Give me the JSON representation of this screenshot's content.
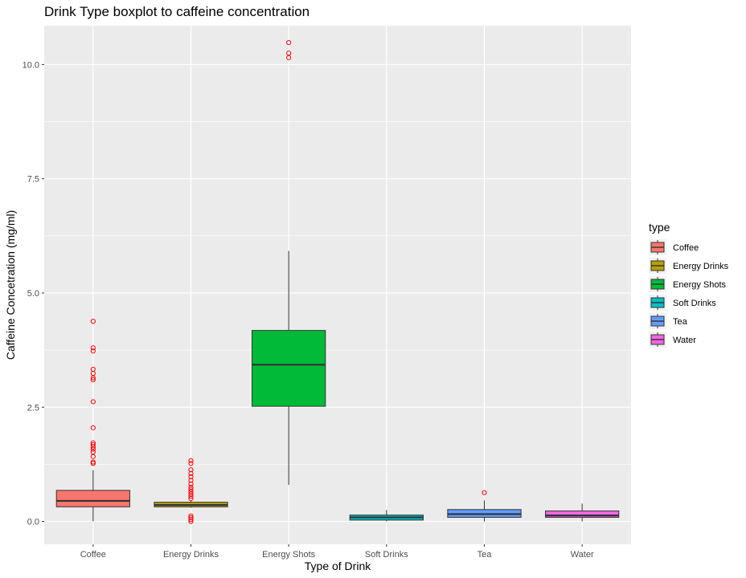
{
  "chart_data": {
    "type": "boxplot",
    "title": "Drink Type boxplot to caffeine concentration",
    "xlabel": "Type of Drink",
    "ylabel": "Caffeine Concetration (mg/ml)",
    "ylim": [
      -0.5,
      10.85
    ],
    "y_ticks": [
      0.0,
      2.5,
      5.0,
      7.5,
      10.0
    ],
    "y_tick_labels": [
      "0.0",
      "2.5",
      "5.0",
      "7.5",
      "10.0"
    ],
    "grid": true,
    "legend": {
      "title": "type",
      "placement": "right"
    },
    "outlier_color": "#ff0000",
    "categories": [
      "Coffee",
      "Energy Drinks",
      "Energy Shots",
      "Soft Drinks",
      "Tea",
      "Water"
    ],
    "series": [
      {
        "name": "Coffee",
        "color": "#f8766d",
        "whisker_low": 0.0,
        "q1": 0.32,
        "median": 0.45,
        "q3": 0.68,
        "whisker_high": 1.12,
        "outliers": [
          1.27,
          1.3,
          1.42,
          1.52,
          1.58,
          1.63,
          1.68,
          1.72,
          2.05,
          2.62,
          3.1,
          3.14,
          3.24,
          3.33,
          3.73,
          3.8,
          4.38
        ]
      },
      {
        "name": "Energy Drinks",
        "color": "#b79f00",
        "whisker_low": 0.3,
        "q1": 0.32,
        "median": 0.36,
        "q3": 0.42,
        "whisker_high": 0.46,
        "outliers": [
          0.0,
          0.04,
          0.08,
          0.12,
          0.5,
          0.55,
          0.6,
          0.65,
          0.7,
          0.75,
          0.82,
          0.9,
          0.98,
          1.05,
          1.13,
          1.27,
          1.33
        ]
      },
      {
        "name": "Energy Shots",
        "color": "#00ba38",
        "whisker_low": 0.8,
        "q1": 2.52,
        "median": 3.43,
        "q3": 4.18,
        "whisker_high": 5.92,
        "outliers": [
          10.15,
          10.25,
          10.48
        ]
      },
      {
        "name": "Soft Drinks",
        "color": "#00bfc4",
        "whisker_low": 0.0,
        "q1": 0.03,
        "median": 0.09,
        "q3": 0.14,
        "whisker_high": 0.25,
        "outliers": []
      },
      {
        "name": "Tea",
        "color": "#619cff",
        "whisker_low": 0.0,
        "q1": 0.09,
        "median": 0.16,
        "q3": 0.26,
        "whisker_high": 0.46,
        "outliers": [
          0.63
        ]
      },
      {
        "name": "Water",
        "color": "#f564e3",
        "whisker_low": 0.0,
        "q1": 0.09,
        "median": 0.13,
        "q3": 0.23,
        "whisker_high": 0.39,
        "outliers": []
      }
    ]
  }
}
